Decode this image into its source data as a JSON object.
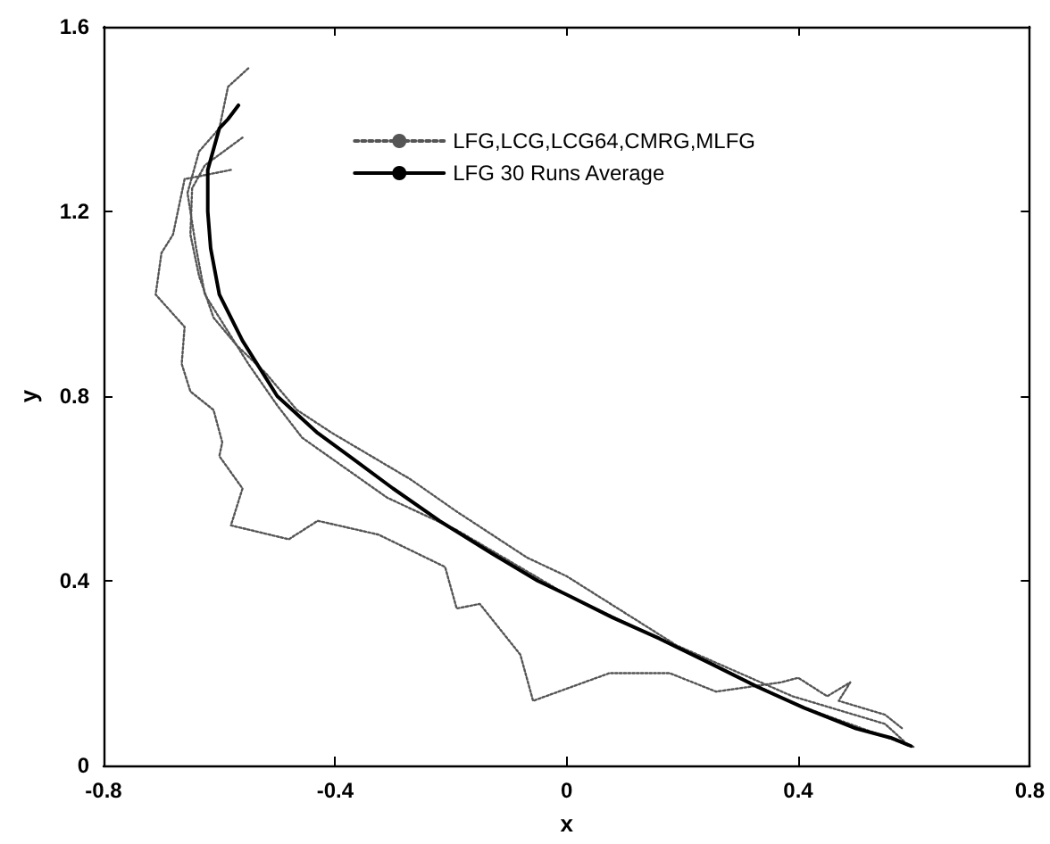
{
  "chart_data": {
    "type": "line",
    "xlabel": "x",
    "ylabel": "y",
    "xlim": [
      -0.8,
      0.8
    ],
    "xticks": [
      -0.8,
      -0.4,
      0,
      0.4,
      0.8
    ],
    "ylim": [
      0,
      1.6
    ],
    "yticks": [
      0,
      0.4,
      0.8,
      1.2,
      1.6
    ],
    "grid": false,
    "legend": "top right",
    "marker": "none",
    "series": [
      {
        "name": "LFG,LCG,LCG64,CMRG,MLFG",
        "color": "#555555",
        "line_style": "dotted",
        "x": [
          -0.58,
          -0.66,
          -0.68,
          -0.7,
          -0.71,
          -0.66,
          -0.665,
          -0.65,
          -0.61,
          -0.595,
          -0.6,
          -0.56,
          -0.58,
          -0.48,
          -0.43,
          -0.325,
          -0.21,
          -0.19,
          -0.15,
          -0.08,
          -0.058,
          0.074,
          0.156,
          0.178,
          0.258,
          0.37,
          0.4,
          0.45,
          0.49,
          0.47,
          0.55,
          0.58
        ],
        "values": [
          1.29,
          1.27,
          1.15,
          1.11,
          1.02,
          0.95,
          0.87,
          0.81,
          0.77,
          0.7,
          0.67,
          0.6,
          0.52,
          0.49,
          0.53,
          0.5,
          0.43,
          0.34,
          0.35,
          0.24,
          0.14,
          0.2,
          0.2,
          0.2,
          0.16,
          0.18,
          0.19,
          0.15,
          0.18,
          0.14,
          0.11,
          0.08
        ]
      },
      {
        "color": "#555555",
        "line_style": "dotted",
        "x": [
          -0.55,
          -0.585,
          -0.6,
          -0.635,
          -0.655,
          -0.64,
          -0.625,
          -0.59,
          -0.55,
          -0.5,
          -0.457,
          -0.31,
          -0.19,
          0,
          0.2,
          0.4,
          0.6
        ],
        "values": [
          1.51,
          1.47,
          1.38,
          1.33,
          1.24,
          1.12,
          1.02,
          0.95,
          0.87,
          0.78,
          0.71,
          0.58,
          0.51,
          0.37,
          0.25,
          0.13,
          0.04
        ]
      },
      {
        "color": "#555555",
        "line_style": "dotted",
        "x": [
          -0.56,
          -0.625,
          -0.647,
          -0.65,
          -0.635,
          -0.61,
          -0.57,
          -0.52,
          -0.466,
          -0.405,
          -0.27,
          -0.19,
          -0.068,
          0,
          0.19,
          0.39,
          0.55,
          0.585
        ],
        "values": [
          1.36,
          1.3,
          1.25,
          1.15,
          1.06,
          0.97,
          0.91,
          0.85,
          0.77,
          0.72,
          0.62,
          0.55,
          0.45,
          0.41,
          0.26,
          0.15,
          0.09,
          0.05
        ]
      },
      {
        "name": "LFG 30 Runs Average",
        "color": "#000000",
        "line_style": "solid",
        "x": [
          -0.567,
          -0.585,
          -0.6,
          -0.62,
          -0.62,
          -0.615,
          -0.6,
          -0.56,
          -0.5,
          -0.43,
          -0.37,
          -0.3,
          -0.22,
          -0.13,
          -0.05,
          0,
          0.08,
          0.16,
          0.25,
          0.33,
          0.41,
          0.5,
          0.56,
          0.595
        ],
        "values": [
          1.43,
          1.4,
          1.38,
          1.29,
          1.2,
          1.12,
          1.02,
          0.92,
          0.8,
          0.72,
          0.665,
          0.6,
          0.53,
          0.46,
          0.4,
          0.37,
          0.32,
          0.275,
          0.22,
          0.17,
          0.125,
          0.08,
          0.06,
          0.042
        ]
      }
    ]
  }
}
